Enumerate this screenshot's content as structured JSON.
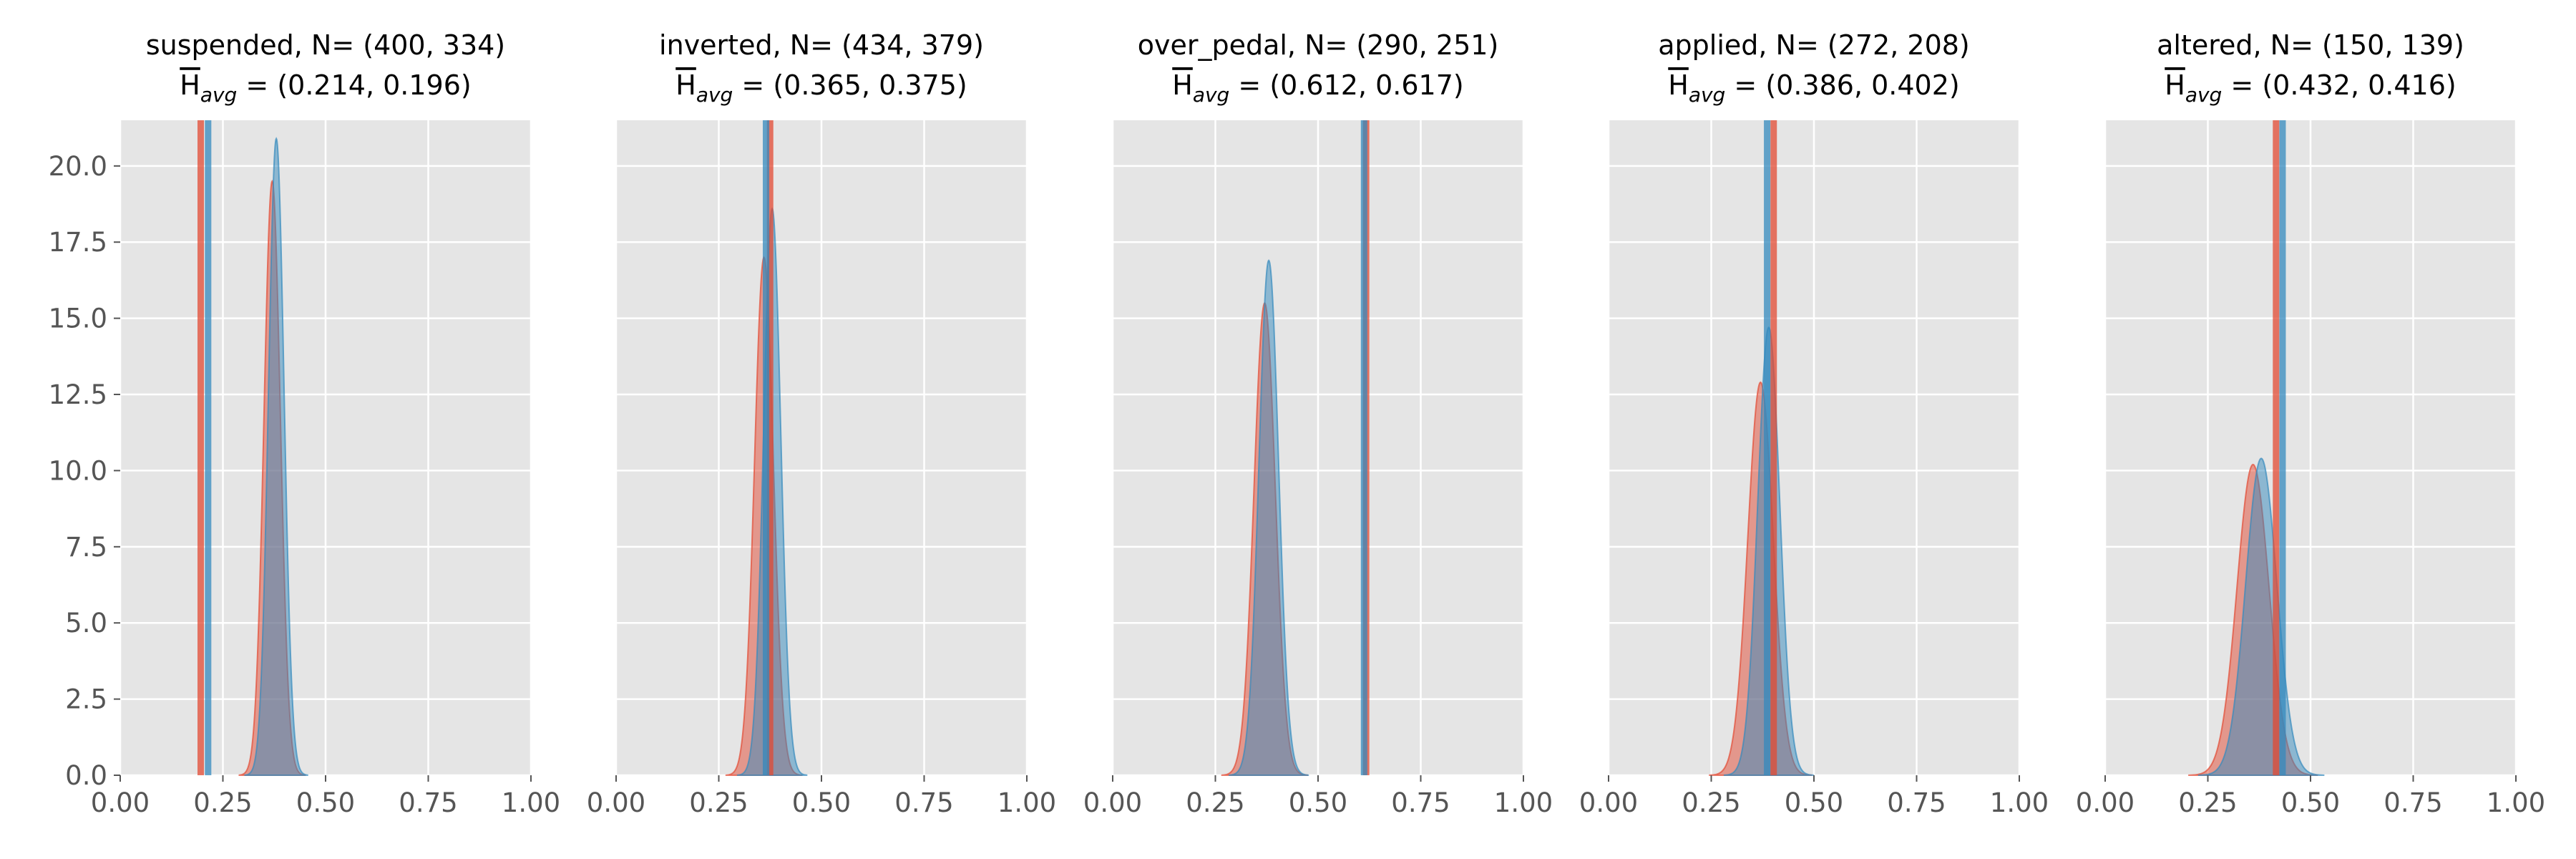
{
  "figure": {
    "series_colors": {
      "first": "#E24A33",
      "second": "#348ABD"
    },
    "axes_background": "#E5E5E5",
    "grid_color": "#FFFFFF",
    "grid": true,
    "ytick_labels_on": "first panel only"
  },
  "chart_data": [
    {
      "type": "area",
      "title": "suspended, N= (400, 334)",
      "subtitle_prefix": "H",
      "subtitle_sub": "avg",
      "subtitle_rest": " =  (0.214, 0.196)",
      "xlim": [
        0,
        1
      ],
      "ylim": [
        0,
        21.5
      ],
      "x_ticks": [
        "0.00",
        "0.25",
        "0.50",
        "0.75",
        "1.00"
      ],
      "y_ticks": [
        "0.0",
        "2.5",
        "5.0",
        "7.5",
        "10.0",
        "12.5",
        "15.0",
        "17.5",
        "20.0"
      ],
      "series": [
        {
          "color": "#E24A33",
          "vline": 0.196,
          "peak_x": 0.37,
          "peak_y": 19.5,
          "sigma": 0.02
        },
        {
          "color": "#348ABD",
          "vline": 0.214,
          "peak_x": 0.38,
          "peak_y": 20.9,
          "sigma": 0.019
        }
      ]
    },
    {
      "type": "area",
      "title": "inverted, N= (434, 379)",
      "subtitle_prefix": "H",
      "subtitle_sub": "avg",
      "subtitle_rest": " =  (0.365, 0.375)",
      "xlim": [
        0,
        1
      ],
      "ylim": [
        0,
        21.5
      ],
      "x_ticks": [
        "0.00",
        "0.25",
        "0.50",
        "0.75",
        "1.00"
      ],
      "y_ticks": [
        "0.0",
        "2.5",
        "5.0",
        "7.5",
        "10.0",
        "12.5",
        "15.0",
        "17.5",
        "20.0"
      ],
      "series": [
        {
          "color": "#E24A33",
          "vline": 0.375,
          "peak_x": 0.36,
          "peak_y": 17.0,
          "sigma": 0.023
        },
        {
          "color": "#348ABD",
          "vline": 0.365,
          "peak_x": 0.38,
          "peak_y": 18.6,
          "sigma": 0.021
        }
      ]
    },
    {
      "type": "area",
      "title": "over_pedal, N= (290, 251)",
      "subtitle_prefix": "H",
      "subtitle_sub": "avg",
      "subtitle_rest": " =  (0.612, 0.617)",
      "xlim": [
        0,
        1
      ],
      "ylim": [
        0,
        21.5
      ],
      "x_ticks": [
        "0.00",
        "0.25",
        "0.50",
        "0.75",
        "1.00"
      ],
      "y_ticks": [
        "0.0",
        "2.5",
        "5.0",
        "7.5",
        "10.0",
        "12.5",
        "15.0",
        "17.5",
        "20.0"
      ],
      "series": [
        {
          "color": "#E24A33",
          "vline": 0.617,
          "peak_x": 0.37,
          "peak_y": 15.5,
          "sigma": 0.026
        },
        {
          "color": "#348ABD",
          "vline": 0.612,
          "peak_x": 0.38,
          "peak_y": 16.9,
          "sigma": 0.024
        }
      ]
    },
    {
      "type": "area",
      "title": "applied, N= (272, 208)",
      "subtitle_prefix": "H",
      "subtitle_sub": "avg",
      "subtitle_rest": " =  (0.386, 0.402)",
      "xlim": [
        0,
        1
      ],
      "ylim": [
        0,
        21.5
      ],
      "x_ticks": [
        "0.00",
        "0.25",
        "0.50",
        "0.75",
        "1.00"
      ],
      "y_ticks": [
        "0.0",
        "2.5",
        "5.0",
        "7.5",
        "10.0",
        "12.5",
        "15.0",
        "17.5",
        "20.0"
      ],
      "series": [
        {
          "color": "#E24A33",
          "vline": 0.402,
          "peak_x": 0.37,
          "peak_y": 12.9,
          "sigma": 0.031
        },
        {
          "color": "#348ABD",
          "vline": 0.386,
          "peak_x": 0.39,
          "peak_y": 14.7,
          "sigma": 0.027
        }
      ]
    },
    {
      "type": "area",
      "title": "altered, N= (150, 139)",
      "subtitle_prefix": "H",
      "subtitle_sub": "avg",
      "subtitle_rest": " =  (0.432, 0.416)",
      "xlim": [
        0,
        1
      ],
      "ylim": [
        0,
        21.5
      ],
      "x_ticks": [
        "0.00",
        "0.25",
        "0.50",
        "0.75",
        "1.00"
      ],
      "y_ticks": [
        "0.0",
        "2.5",
        "5.0",
        "7.5",
        "10.0",
        "12.5",
        "15.0",
        "17.5",
        "20.0"
      ],
      "series": [
        {
          "color": "#E24A33",
          "vline": 0.416,
          "peak_x": 0.36,
          "peak_y": 10.2,
          "sigma": 0.039
        },
        {
          "color": "#348ABD",
          "vline": 0.432,
          "peak_x": 0.38,
          "peak_y": 10.4,
          "sigma": 0.038
        }
      ]
    }
  ]
}
